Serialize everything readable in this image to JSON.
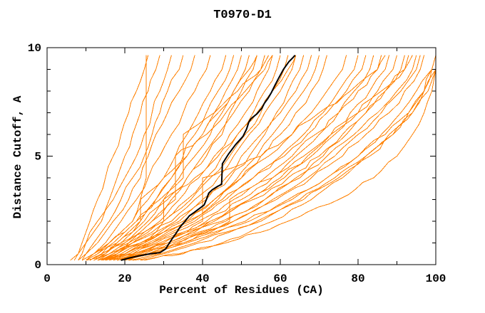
{
  "chart_data": {
    "type": "line",
    "title": "T0970-D1",
    "xlabel": "Percent of Residues (CA)",
    "ylabel": "Distance Cutoff, A",
    "xlim": [
      0,
      100
    ],
    "ylim": [
      0,
      10
    ],
    "x_major_ticks": [
      0,
      20,
      40,
      60,
      80,
      100
    ],
    "x_minor_ticks": [
      10,
      30,
      50,
      70,
      90
    ],
    "y_major_ticks": [
      0,
      5,
      10
    ],
    "y_minor_ticks": [
      1,
      2,
      3,
      4,
      6,
      7,
      8,
      9
    ],
    "grid": false,
    "legend": "none",
    "colors": {
      "models": "#ff8000",
      "highlight": "#000000",
      "axis": "#000000",
      "background": "#ffffff"
    },
    "anchor_cutoffs": [
      0.2,
      0.5,
      1,
      1.5,
      2,
      3,
      4,
      5,
      6,
      7,
      8,
      9,
      9.65
    ],
    "highlight_series": {
      "name": "highlighted-model",
      "points": [
        [
          19,
          0.2
        ],
        [
          21,
          0.3
        ],
        [
          23.5,
          0.4
        ],
        [
          26.5,
          0.5
        ],
        [
          29,
          0.55
        ],
        [
          30.5,
          0.72
        ],
        [
          31.3,
          0.95
        ],
        [
          32.2,
          1.2
        ],
        [
          33.2,
          1.45
        ],
        [
          34.3,
          1.75
        ],
        [
          35.5,
          2.0
        ],
        [
          36.6,
          2.25
        ],
        [
          37.8,
          2.4
        ],
        [
          39.3,
          2.6
        ],
        [
          40.4,
          2.75
        ],
        [
          41.0,
          3.0
        ],
        [
          41.6,
          3.3
        ],
        [
          42.5,
          3.45
        ],
        [
          43.8,
          3.6
        ],
        [
          44.9,
          3.7
        ],
        [
          45.1,
          4.65
        ],
        [
          46.7,
          5.1
        ],
        [
          48.5,
          5.53
        ],
        [
          50.4,
          5.91
        ],
        [
          51.3,
          6.24
        ],
        [
          51.9,
          6.57
        ],
        [
          52.5,
          6.73
        ],
        [
          54.0,
          6.95
        ],
        [
          55.3,
          7.22
        ],
        [
          55.9,
          7.44
        ],
        [
          56.8,
          7.66
        ],
        [
          57.7,
          7.93
        ],
        [
          58.6,
          8.26
        ],
        [
          59.6,
          8.6
        ],
        [
          60.8,
          9.0
        ],
        [
          62.2,
          9.35
        ],
        [
          63.3,
          9.55
        ],
        [
          63.8,
          9.65
        ]
      ]
    },
    "model_series": [
      {
        "p": [
          7,
          8,
          9,
          10,
          11,
          13,
          15,
          17,
          19,
          21,
          23,
          25,
          26
        ]
      },
      {
        "p": [
          8,
          9,
          10,
          11,
          13,
          16,
          18,
          20,
          22,
          24,
          26,
          28,
          29
        ]
      },
      {
        "p": [
          6,
          8,
          10,
          12,
          14,
          17,
          20,
          23,
          25,
          27,
          29,
          31,
          32
        ]
      },
      {
        "p": [
          9,
          10,
          12,
          14,
          16,
          19,
          22,
          25,
          27,
          29,
          31,
          34,
          35
        ]
      },
      {
        "p": [
          8,
          10,
          13,
          15,
          17,
          21,
          24,
          26,
          28,
          31,
          34,
          37,
          38
        ]
      },
      {
        "p": [
          10,
          12,
          15,
          17,
          19,
          23,
          26,
          29,
          32,
          35,
          38,
          41,
          42
        ]
      },
      {
        "p": [
          9,
          12,
          16,
          19,
          22,
          24,
          25.5,
          25.5,
          25.5,
          25.5,
          25.5,
          25.5,
          25.5
        ]
      },
      {
        "p": [
          10,
          13,
          16,
          19,
          22,
          26,
          30,
          33,
          36,
          39,
          42,
          45,
          46
        ]
      },
      {
        "p": [
          12,
          15,
          18,
          21,
          24,
          28,
          32,
          35,
          38,
          41,
          44,
          47,
          48
        ]
      },
      {
        "p": [
          9,
          12,
          16,
          20,
          23,
          28,
          32,
          36,
          40,
          43,
          46,
          49,
          50
        ]
      },
      {
        "p": [
          11,
          14,
          18,
          22,
          25,
          30,
          34,
          38,
          42,
          45,
          48,
          51,
          52
        ]
      },
      {
        "p": [
          13,
          16,
          20,
          24,
          27,
          32,
          36,
          40,
          44,
          47,
          50,
          53,
          54
        ]
      },
      {
        "p": [
          10,
          14,
          19,
          23,
          26,
          31,
          36,
          41,
          45,
          48,
          52,
          55,
          56
        ]
      },
      {
        "p": [
          12,
          16,
          21,
          25,
          29,
          34,
          39,
          43,
          47,
          51,
          54,
          57,
          58
        ]
      },
      {
        "p": [
          14,
          18,
          22,
          26,
          30,
          36,
          41,
          45,
          49,
          53,
          56,
          59,
          60
        ]
      },
      {
        "p": [
          11,
          15,
          20,
          25,
          30,
          37,
          42,
          47,
          51,
          55,
          58,
          61,
          62
        ]
      },
      {
        "p": [
          13,
          17,
          22,
          27,
          32,
          38,
          44,
          48,
          52,
          56,
          60,
          63,
          64
        ]
      },
      {
        "p": [
          15,
          19,
          24,
          29,
          34,
          40,
          46,
          50,
          55,
          59,
          62,
          65,
          66
        ]
      },
      {
        "p": [
          12,
          16,
          22,
          28,
          33,
          41,
          47,
          52,
          56,
          60,
          64,
          67,
          68
        ]
      },
      {
        "p": [
          14,
          18,
          24,
          30,
          36,
          43,
          49,
          54,
          58,
          62,
          66,
          69,
          70
        ]
      },
      {
        "p": [
          16,
          20,
          26,
          31,
          37,
          44,
          50,
          55,
          60,
          64,
          68,
          71,
          72
        ]
      },
      {
        "p": [
          11,
          15,
          19,
          22,
          24,
          24,
          30,
          36,
          40,
          44,
          48,
          52,
          54
        ]
      },
      {
        "p": [
          13,
          17,
          21,
          24,
          27,
          33,
          33,
          33,
          41,
          46,
          51,
          56,
          58
        ]
      },
      {
        "p": [
          15,
          20,
          25,
          28,
          30,
          30,
          38,
          44,
          49,
          54,
          58,
          62,
          64
        ]
      },
      {
        "p": [
          10,
          13,
          17,
          20,
          23,
          29,
          35,
          35,
          35,
          43,
          49,
          55,
          57
        ]
      },
      {
        "p": [
          14,
          19,
          25,
          30,
          35,
          43,
          50,
          57,
          63,
          68,
          72,
          76,
          77
        ]
      },
      {
        "p": [
          16,
          21,
          27,
          32,
          38,
          46,
          53,
          60,
          66,
          71,
          75,
          79,
          80
        ]
      },
      {
        "p": [
          13,
          18,
          24,
          30,
          36,
          45,
          53,
          61,
          67,
          72,
          77,
          81,
          82
        ]
      },
      {
        "p": [
          17,
          23,
          29,
          35,
          41,
          50,
          58,
          64,
          70,
          75,
          79,
          83,
          84
        ]
      },
      {
        "p": [
          15,
          20,
          27,
          33,
          39,
          48,
          56,
          63,
          69,
          75,
          80,
          85,
          86
        ]
      },
      {
        "p": [
          18,
          24,
          31,
          37,
          43,
          52,
          60,
          67,
          73,
          78,
          83,
          87,
          88
        ]
      },
      {
        "p": [
          16,
          22,
          29,
          36,
          42,
          52,
          61,
          68,
          74,
          80,
          85,
          89,
          90
        ]
      },
      {
        "p": [
          19,
          25,
          32,
          39,
          46,
          56,
          64,
          71,
          77,
          82,
          87,
          91,
          92
        ]
      },
      {
        "p": [
          14,
          20,
          28,
          35,
          42,
          53,
          62,
          70,
          76,
          82,
          87,
          92,
          93
        ]
      },
      {
        "p": [
          17,
          23,
          31,
          38,
          45,
          56,
          65,
          72,
          79,
          85,
          90,
          94,
          95
        ]
      },
      {
        "p": [
          20,
          26,
          34,
          41,
          48,
          58,
          67,
          74,
          80,
          86,
          91,
          95,
          96
        ]
      },
      {
        "p": [
          18,
          25,
          33,
          40,
          48,
          59,
          68,
          76,
          82,
          88,
          92,
          96,
          97
        ]
      },
      {
        "p": [
          15,
          22,
          30,
          36,
          40,
          40,
          40,
          55,
          63,
          70,
          78,
          85,
          87
        ]
      },
      {
        "p": [
          19,
          26,
          35,
          42,
          47,
          47,
          58,
          66,
          73,
          80,
          86,
          92,
          94
        ]
      },
      {
        "p": [
          20,
          28,
          36,
          44,
          52,
          63,
          72,
          80,
          86,
          91,
          95,
          99,
          100
        ]
      },
      {
        "p": [
          22,
          30,
          39,
          47,
          55,
          66,
          75,
          82,
          88,
          93,
          97,
          100,
          100
        ]
      },
      {
        "p": [
          18,
          26,
          35,
          43,
          51,
          62,
          72,
          80,
          87,
          93,
          97,
          99,
          100
        ]
      },
      {
        "p": [
          21,
          29,
          38,
          46,
          54,
          65,
          74,
          82,
          89,
          94,
          98,
          100,
          100
        ]
      },
      {
        "p": [
          25,
          35,
          45,
          52,
          58,
          68,
          76,
          83,
          89,
          94,
          97,
          99,
          100
        ]
      },
      {
        "p": [
          24,
          34,
          46,
          55,
          62,
          75,
          84,
          90,
          94,
          97,
          99,
          100,
          100
        ]
      }
    ]
  }
}
